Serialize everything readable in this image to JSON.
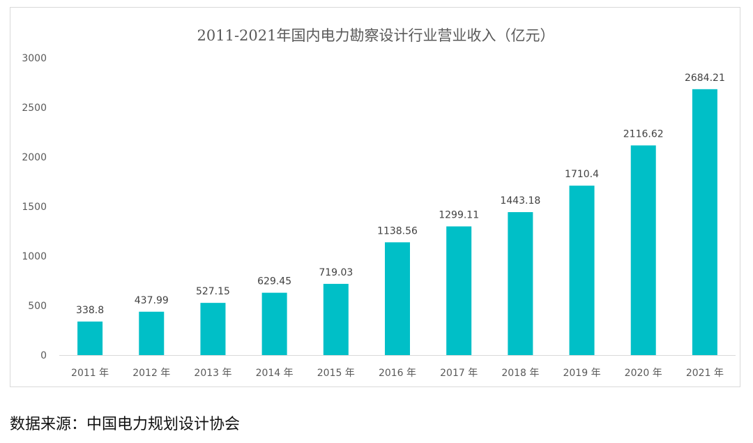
{
  "chart_data": {
    "type": "bar",
    "title": "2011-2021年国内电力勘察设计行业营业收入（亿元）",
    "categories": [
      "2011 年",
      "2012 年",
      "2013 年",
      "2014 年",
      "2015 年",
      "2016 年",
      "2017 年",
      "2018 年",
      "2019 年",
      "2020 年",
      "2021 年"
    ],
    "values": [
      338.8,
      437.99,
      527.15,
      629.45,
      719.03,
      1138.56,
      1299.11,
      1443.18,
      1710.4,
      2116.62,
      2684.21
    ],
    "value_labels": [
      "338.8",
      "437.99",
      "527.15",
      "629.45",
      "719.03",
      "1138.56",
      "1299.11",
      "1443.18",
      "1710.4",
      "2116.62",
      "2684.21"
    ],
    "y_ticks": [
      0,
      500,
      1000,
      1500,
      2000,
      2500,
      3000
    ],
    "ylim": [
      0,
      3000
    ],
    "xlabel": "",
    "ylabel": "",
    "grid": false,
    "legend": "none",
    "bar_color": "#00BFC7"
  },
  "source_note": "数据来源：中国电力规划设计协会"
}
